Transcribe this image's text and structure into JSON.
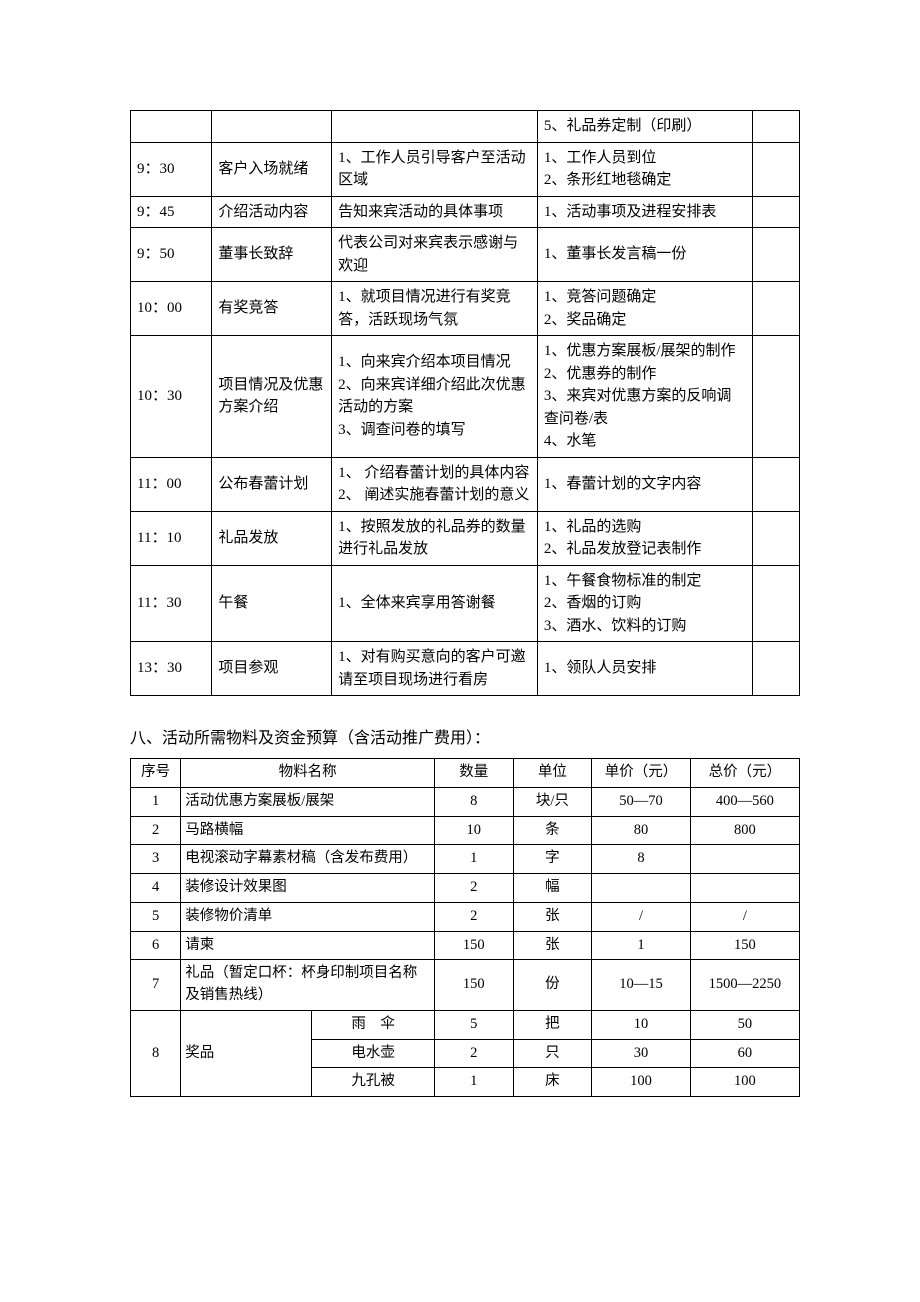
{
  "schedule": {
    "rows": [
      {
        "time": "",
        "item": "",
        "content": "",
        "prep": "5、礼品券定制（印刷）",
        "note": ""
      },
      {
        "time": "9：30",
        "item": "客户入场就绪",
        "content": "1、工作人员引导客户至活动区域",
        "prep": "1、工作人员到位\n2、条形红地毯确定",
        "note": ""
      },
      {
        "time": "9：45",
        "item": "介绍活动内容",
        "content": "告知来宾活动的具体事项",
        "prep": "1、活动事项及进程安排表",
        "note": ""
      },
      {
        "time": "9：50",
        "item": "董事长致辞",
        "content": "代表公司对来宾表示感谢与欢迎",
        "prep": "1、董事长发言稿一份",
        "note": ""
      },
      {
        "time": "10：00",
        "item": "有奖竞答",
        "content": "1、就项目情况进行有奖竞答，活跃现场气氛",
        "prep": "1、竞答问题确定\n2、奖品确定",
        "note": ""
      },
      {
        "time": "10：30",
        "item": "项目情况及优惠方案介绍",
        "content": "1、向来宾介绍本项目情况\n2、向来宾详细介绍此次优惠活动的方案\n3、调查问卷的填写",
        "prep": "1、优惠方案展板/展架的制作\n2、优惠券的制作\n3、来宾对优惠方案的反响调查问卷/表\n4、水笔",
        "note": ""
      },
      {
        "time": "11：00",
        "item": "公布春蕾计划",
        "content": "1、 介绍春蕾计划的具体内容\n2、 阐述实施春蕾计划的意义",
        "prep": "1、春蕾计划的文字内容",
        "note": ""
      },
      {
        "time": "11：10",
        "item": "礼品发放",
        "content": "1、按照发放的礼品券的数量进行礼品发放",
        "prep": "1、礼品的选购\n2、礼品发放登记表制作",
        "note": ""
      },
      {
        "time": "11：30",
        "item": "午餐",
        "content": "1、全体来宾享用答谢餐",
        "prep": "1、午餐食物标准的制定\n2、香烟的订购\n3、酒水、饮料的订购",
        "note": ""
      },
      {
        "time": "13：30",
        "item": "项目参观",
        "content": "1、对有购买意向的客户可邀请至项目现场进行看房",
        "prep": "1、领队人员安排",
        "note": ""
      }
    ]
  },
  "section_title": "八、活动所需物料及资金预算（含活动推广费用）：",
  "budget": {
    "headers": {
      "no": "序号",
      "name": "物料名称",
      "qty": "数量",
      "unit": "单位",
      "price": "单价（元）",
      "total": "总价（元）"
    },
    "rows": [
      {
        "no": "1",
        "name": "活动优惠方案展板/展架",
        "qty": "8",
        "unit": "块/只",
        "price": "50—70",
        "total": "400—560"
      },
      {
        "no": "2",
        "name": "马路横幅",
        "qty": "10",
        "unit": "条",
        "price": "80",
        "total": "800"
      },
      {
        "no": "3",
        "name": "电视滚动字幕素材稿（含发布费用）",
        "qty": "1",
        "unit": "字",
        "price": "8",
        "total": ""
      },
      {
        "no": "4",
        "name": "装修设计效果图",
        "qty": "2",
        "unit": "幅",
        "price": "",
        "total": ""
      },
      {
        "no": "5",
        "name": "装修物价清单",
        "qty": "2",
        "unit": "张",
        "price": "/",
        "total": "/"
      },
      {
        "no": "6",
        "name": "请柬",
        "qty": "150",
        "unit": "张",
        "price": "1",
        "total": "150"
      },
      {
        "no": "7",
        "name": "礼品（暂定口杯：杯身印制项目名称及销售热线）",
        "qty": "150",
        "unit": "份",
        "price": "10—15",
        "total": "1500—2250"
      }
    ],
    "prize_group": {
      "no": "8",
      "label": "奖品",
      "items": [
        {
          "name": "雨　伞",
          "qty": "5",
          "unit": "把",
          "price": "10",
          "total": "50"
        },
        {
          "name": "电水壶",
          "qty": "2",
          "unit": "只",
          "price": "30",
          "total": "60"
        },
        {
          "name": "九孔被",
          "qty": "1",
          "unit": "床",
          "price": "100",
          "total": "100"
        }
      ]
    }
  }
}
